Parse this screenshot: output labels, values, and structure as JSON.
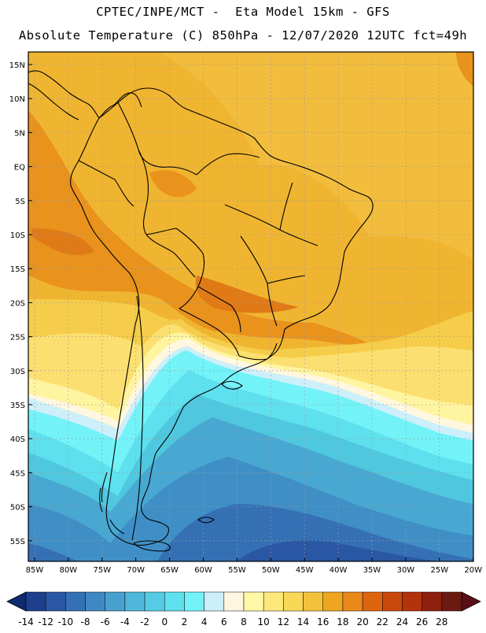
{
  "header": {
    "title_line1": "CPTEC/INPE/MCT -  Eta Model 15km - GFS",
    "title_line2": "Absolute Temperature (C) 850hPa - 12/07/2020 12UTC fct=49h"
  },
  "map": {
    "lat_labels": [
      "15N",
      "10N",
      "5N",
      "EQ",
      "5S",
      "10S",
      "15S",
      "20S",
      "25S",
      "30S",
      "35S",
      "40S",
      "45S",
      "50S",
      "55S"
    ],
    "lon_labels": [
      "85W",
      "80W",
      "75W",
      "70W",
      "65W",
      "60W",
      "55W",
      "50W",
      "45W",
      "40W",
      "35W",
      "30W",
      "25W",
      "20W"
    ]
  },
  "colorbar": {
    "labels": [
      "-14",
      "-12",
      "-10",
      "-8",
      "-6",
      "-4",
      "-2",
      "0",
      "2",
      "4",
      "6",
      "8",
      "10",
      "12",
      "14",
      "16",
      "18",
      "20",
      "22",
      "24",
      "26",
      "28"
    ],
    "colors": [
      "#1d3f8c",
      "#2a57a3",
      "#3570b5",
      "#3f88c4",
      "#48a0cf",
      "#4fb8da",
      "#55cce3",
      "#5fe0ee",
      "#73f3f8",
      "#cdeffa",
      "#fff6e0",
      "#fff8a6",
      "#fde97b",
      "#f9d858",
      "#f3c23c",
      "#eea621",
      "#e8891a",
      "#de6510",
      "#c9480c",
      "#b4330b",
      "#8e200e",
      "#6a1a10"
    ],
    "low_end_color": "#0f2a70",
    "high_end_color": "#5a0f18"
  }
}
